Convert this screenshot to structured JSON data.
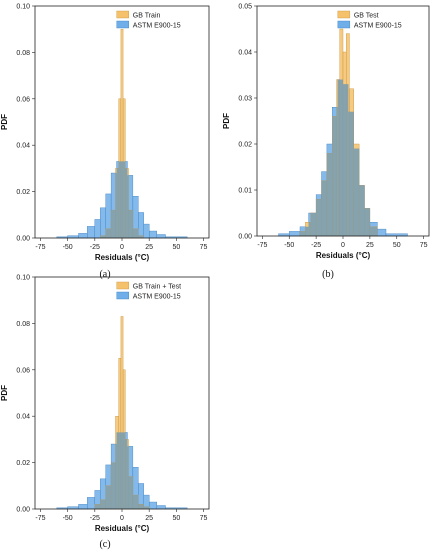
{
  "chart_data": [
    {
      "type": "bar",
      "panel_label": "(a)",
      "xlabel": "Residuals (°C)",
      "ylabel": "PDF",
      "xlim": [
        -80,
        80
      ],
      "ylim": [
        0,
        0.1
      ],
      "xticks": [
        -75,
        -50,
        -25,
        0,
        25,
        50,
        75
      ],
      "yticks": [
        0.0,
        0.02,
        0.04,
        0.06,
        0.08,
        0.1
      ],
      "ytick_labels": [
        "0.00",
        "0.02",
        "0.04",
        "0.06",
        "0.08",
        "0.10"
      ],
      "legend_position": "top-right",
      "series": [
        {
          "name": "GB Train",
          "color": "#F5C26B",
          "bins": [
            [
              -20,
              -15,
              0.001
            ],
            [
              -15,
              -10,
              0.004
            ],
            [
              -10,
              -6,
              0.012
            ],
            [
              -6,
              -3,
              0.03
            ],
            [
              -3,
              -1,
              0.06
            ],
            [
              -1,
              1,
              0.09
            ],
            [
              1,
              3,
              0.06
            ],
            [
              3,
              6,
              0.03
            ],
            [
              6,
              10,
              0.012
            ],
            [
              10,
              15,
              0.004
            ],
            [
              15,
              20,
              0.001
            ]
          ]
        },
        {
          "name": "ASTM E900-15",
          "color": "#6FAEE8",
          "bins": [
            [
              -60,
              -50,
              0.0005
            ],
            [
              -50,
              -40,
              0.001
            ],
            [
              -40,
              -32,
              0.002
            ],
            [
              -32,
              -25,
              0.005
            ],
            [
              -25,
              -20,
              0.008
            ],
            [
              -20,
              -15,
              0.013
            ],
            [
              -15,
              -10,
              0.019
            ],
            [
              -10,
              -5,
              0.028
            ],
            [
              -5,
              0,
              0.033
            ],
            [
              0,
              5,
              0.033
            ],
            [
              5,
              10,
              0.027
            ],
            [
              10,
              15,
              0.018
            ],
            [
              15,
              20,
              0.011
            ],
            [
              20,
              25,
              0.006
            ],
            [
              25,
              32,
              0.003
            ],
            [
              32,
              40,
              0.0015
            ],
            [
              40,
              60,
              0.0005
            ]
          ]
        }
      ]
    },
    {
      "type": "bar",
      "panel_label": "(b)",
      "xlabel": "Residuals (°C)",
      "ylabel": "PDF",
      "xlim": [
        -80,
        80
      ],
      "ylim": [
        0,
        0.05
      ],
      "xticks": [
        -75,
        -50,
        -25,
        0,
        25,
        50,
        75
      ],
      "yticks": [
        0.0,
        0.01,
        0.02,
        0.03,
        0.04,
        0.05
      ],
      "ytick_labels": [
        "0.00",
        "0.01",
        "0.02",
        "0.03",
        "0.04",
        "0.05"
      ],
      "legend_position": "top-right",
      "series": [
        {
          "name": "GB Test",
          "color": "#F5C26B",
          "bins": [
            [
              -40,
              -35,
              0.001
            ],
            [
              -35,
              -30,
              0.003
            ],
            [
              -30,
              -25,
              0.005
            ],
            [
              -25,
              -20,
              0.008
            ],
            [
              -20,
              -15,
              0.012
            ],
            [
              -15,
              -10,
              0.018
            ],
            [
              -10,
              -6,
              0.026
            ],
            [
              -6,
              -3,
              0.034
            ],
            [
              -3,
              0,
              0.045
            ],
            [
              0,
              3,
              0.04
            ],
            [
              3,
              6,
              0.044
            ],
            [
              6,
              10,
              0.032
            ],
            [
              10,
              15,
              0.02
            ],
            [
              15,
              20,
              0.011
            ],
            [
              20,
              25,
              0.006
            ],
            [
              25,
              32,
              0.002
            ]
          ]
        },
        {
          "name": "ASTM E900-15",
          "color": "#6FAEE8",
          "bins": [
            [
              -60,
              -50,
              0.0005
            ],
            [
              -50,
              -40,
              0.001
            ],
            [
              -40,
              -32,
              0.002
            ],
            [
              -32,
              -25,
              0.005
            ],
            [
              -25,
              -20,
              0.009
            ],
            [
              -20,
              -15,
              0.014
            ],
            [
              -15,
              -10,
              0.02
            ],
            [
              -10,
              -5,
              0.028
            ],
            [
              -5,
              0,
              0.034
            ],
            [
              0,
              5,
              0.033
            ],
            [
              5,
              10,
              0.027
            ],
            [
              10,
              15,
              0.019
            ],
            [
              15,
              20,
              0.011
            ],
            [
              20,
              25,
              0.006
            ],
            [
              25,
              32,
              0.003
            ],
            [
              32,
              40,
              0.0015
            ],
            [
              40,
              60,
              0.0005
            ]
          ]
        }
      ]
    },
    {
      "type": "bar",
      "panel_label": "(c)",
      "xlabel": "Residuals (°C)",
      "ylabel": "PDF",
      "xlim": [
        -80,
        80
      ],
      "ylim": [
        0,
        0.1
      ],
      "xticks": [
        -75,
        -50,
        -25,
        0,
        25,
        50,
        75
      ],
      "yticks": [
        0.0,
        0.02,
        0.04,
        0.06,
        0.08,
        0.1
      ],
      "ytick_labels": [
        "0.00",
        "0.02",
        "0.04",
        "0.06",
        "0.08",
        "0.10"
      ],
      "legend_position": "top-right",
      "series": [
        {
          "name": "GB Train + Test",
          "color": "#F5C26B",
          "bins": [
            [
              -25,
              -20,
              0.002
            ],
            [
              -20,
              -15,
              0.004
            ],
            [
              -15,
              -10,
              0.01
            ],
            [
              -10,
              -6,
              0.02
            ],
            [
              -6,
              -3,
              0.04
            ],
            [
              -3,
              -1,
              0.065
            ],
            [
              -1,
              1,
              0.083
            ],
            [
              1,
              3,
              0.06
            ],
            [
              3,
              6,
              0.03
            ],
            [
              6,
              10,
              0.014
            ],
            [
              10,
              15,
              0.006
            ],
            [
              15,
              20,
              0.002
            ],
            [
              20,
              25,
              0.001
            ]
          ]
        },
        {
          "name": "ASTM E900-15",
          "color": "#6FAEE8",
          "bins": [
            [
              -60,
              -50,
              0.0005
            ],
            [
              -50,
              -40,
              0.001
            ],
            [
              -40,
              -32,
              0.002
            ],
            [
              -32,
              -25,
              0.005
            ],
            [
              -25,
              -20,
              0.008
            ],
            [
              -20,
              -15,
              0.013
            ],
            [
              -15,
              -10,
              0.019
            ],
            [
              -10,
              -5,
              0.028
            ],
            [
              -5,
              0,
              0.033
            ],
            [
              0,
              5,
              0.033
            ],
            [
              5,
              10,
              0.027
            ],
            [
              10,
              15,
              0.018
            ],
            [
              15,
              20,
              0.011
            ],
            [
              20,
              25,
              0.006
            ],
            [
              25,
              32,
              0.003
            ],
            [
              32,
              40,
              0.0015
            ],
            [
              40,
              60,
              0.0005
            ]
          ]
        }
      ]
    }
  ],
  "colors": {
    "overlap": "#7A9FB2",
    "axis": "#222222"
  }
}
